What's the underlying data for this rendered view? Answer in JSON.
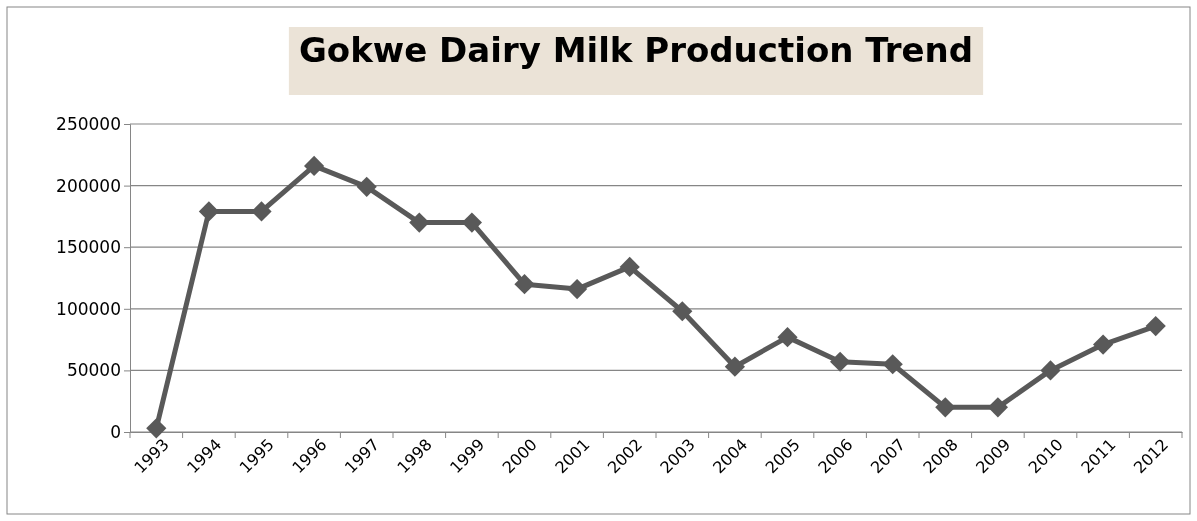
{
  "chart_data": {
    "type": "line",
    "title": "Gokwe Dairy Milk Production Trend",
    "categories": [
      "1993",
      "1994",
      "1995",
      "1996",
      "1997",
      "1998",
      "1999",
      "2000",
      "2001",
      "2002",
      "2003",
      "2004",
      "2005",
      "2006",
      "2007",
      "2008",
      "2009",
      "2010",
      "2011",
      "2012"
    ],
    "series": [
      {
        "color": "#595959",
        "values": [
          3000,
          179000,
          179000,
          216000,
          199000,
          170000,
          170000,
          120000,
          116000,
          134000,
          98000,
          53000,
          77000,
          57000,
          55000,
          20000,
          20000,
          50000,
          71000,
          86000
        ]
      }
    ],
    "ylim": [
      0,
      250000
    ],
    "yticks": [
      0,
      50000,
      100000,
      150000,
      200000,
      250000
    ],
    "grid": "y",
    "marker": "diamond",
    "line_style": "solid"
  }
}
